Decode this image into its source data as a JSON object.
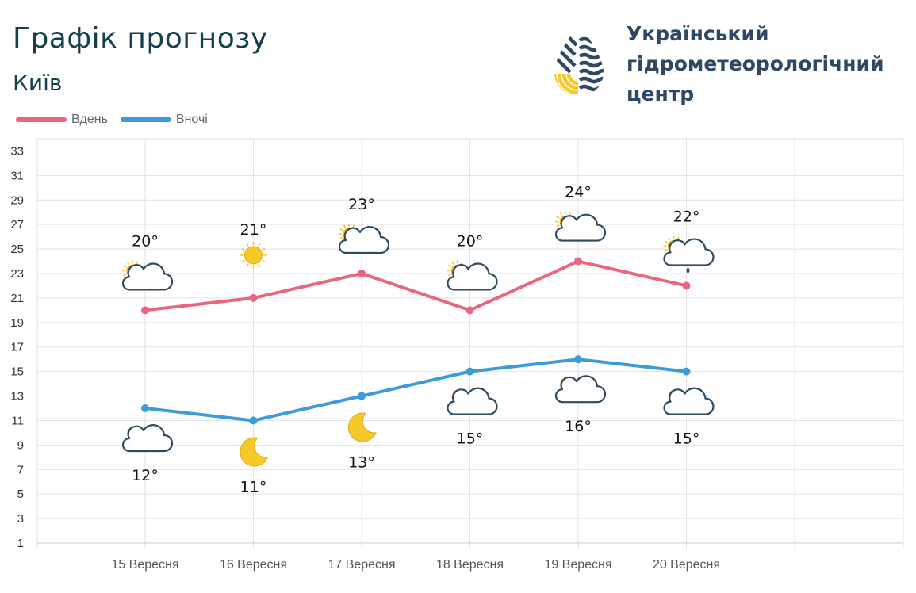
{
  "header": {
    "title": "Графік прогнозу",
    "city": "Київ"
  },
  "logo": {
    "lines": [
      "Український",
      "гідрометеорологічний",
      "центр"
    ],
    "icon": "water-drop-logo-icon"
  },
  "colors": {
    "day": "#e8677f",
    "night": "#3d9bd9",
    "grid": "#e2e2e2",
    "text": "#333333",
    "cloud_stroke": "#2e4a5e",
    "sun": "#f5c928",
    "moon": "#f5c928"
  },
  "chart_data": {
    "type": "line",
    "categories": [
      "15 Вересня",
      "16 Вересня",
      "17 Вересня",
      "18 Вересня",
      "19 Вересня",
      "20 Вересня"
    ],
    "series": [
      {
        "name": "Вдень",
        "key": "day",
        "values": [
          20,
          21,
          23,
          20,
          24,
          22
        ],
        "labels": [
          "20°",
          "21°",
          "23°",
          "20°",
          "24°",
          "22°"
        ],
        "icons": [
          "partly-cloudy-icon",
          "sun-icon",
          "partly-cloudy-icon",
          "partly-cloudy-icon",
          "partly-cloudy-icon",
          "partly-cloudy-rain-icon"
        ]
      },
      {
        "name": "Вночі",
        "key": "night",
        "values": [
          12,
          11,
          13,
          15,
          16,
          15
        ],
        "labels": [
          "12°",
          "11°",
          "13°",
          "15°",
          "16°",
          "15°"
        ],
        "icons": [
          "moon-cloud-icon",
          "moon-icon",
          "moon-icon",
          "moon-cloud-icon",
          "moon-cloud-icon",
          "moon-cloud-icon"
        ]
      }
    ],
    "yticks": [
      1,
      3,
      5,
      7,
      9,
      11,
      13,
      15,
      17,
      19,
      21,
      23,
      25,
      27,
      29,
      31,
      33
    ],
    "ylim": [
      1,
      34
    ],
    "xlabel": "",
    "ylabel": "",
    "grid": true,
    "legend": "top-left"
  }
}
